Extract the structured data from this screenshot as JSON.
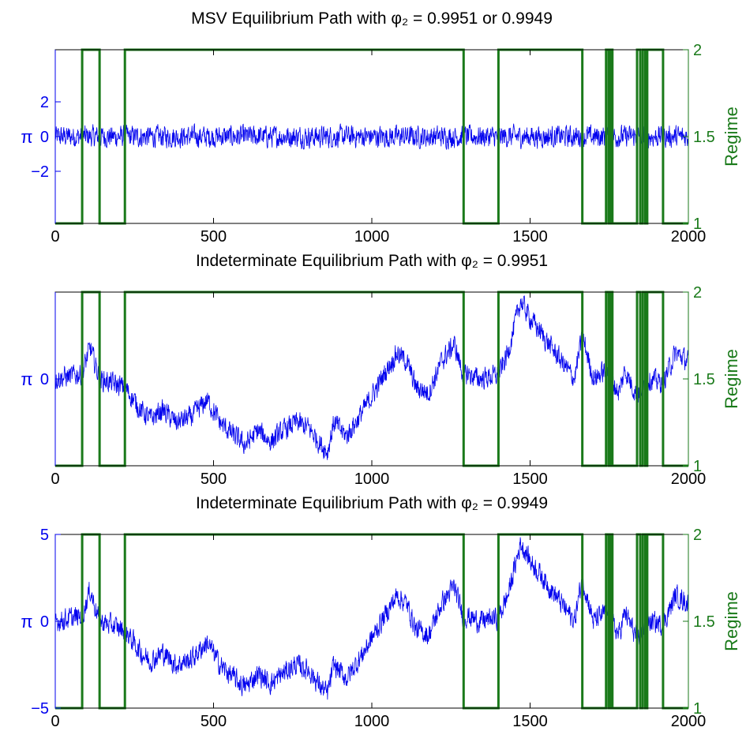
{
  "figure": {
    "colors": {
      "inflation": "#0000ee",
      "regime": "#1a7a1a",
      "axes": "#000000"
    }
  },
  "chart_data": [
    {
      "type": "line",
      "title": "MSV Equilibrium Path with φ₂ = 0.9951 or 0.9949",
      "xlabel": "",
      "ylabel": "π",
      "ylabel_right": "Regime",
      "xlim": [
        0,
        2000
      ],
      "ylim": [
        -5,
        5
      ],
      "ylim_right": [
        1,
        2
      ],
      "xticks": [
        0,
        500,
        1000,
        1500,
        2000
      ],
      "yticks": [
        -2,
        0,
        2
      ],
      "yticks_right": [
        1,
        1.5,
        2
      ],
      "xtick_labels": [
        "0",
        "500",
        "1000",
        "1500",
        "2000"
      ],
      "ytick_labels": [
        "−2",
        "0",
        "2"
      ],
      "ytick_labels_right": [
        "1",
        "1.5",
        "2"
      ],
      "series": [
        {
          "axis": "left",
          "style": "noise",
          "amplitude": 0.55,
          "x": [
            0,
            2000
          ],
          "y": [
            0,
            0
          ]
        },
        {
          "axis": "right",
          "style": "step",
          "x": [
            0,
            85,
            140,
            220,
            1290,
            1400,
            1665,
            1740,
            1748,
            1755,
            1760,
            1838,
            1848,
            1856,
            1864,
            1870,
            1920,
            2000
          ],
          "y": [
            1,
            2,
            1,
            2,
            1,
            2,
            1,
            2,
            1,
            2,
            1,
            2,
            1,
            2,
            1,
            2,
            1,
            2
          ]
        }
      ]
    },
    {
      "type": "line",
      "title": "Indeterminate Equilibrium Path with φ₂ = 0.9951",
      "xlabel": "",
      "ylabel": "π",
      "ylabel_right": "Regime",
      "xlim": [
        0,
        2000
      ],
      "ylim": [
        -5,
        5
      ],
      "ylim_right": [
        1,
        2
      ],
      "xticks": [
        0,
        500,
        1000,
        1500,
        2000
      ],
      "yticks": [
        0
      ],
      "yticks_right": [
        1,
        1.5,
        2
      ],
      "xtick_labels": [
        "0",
        "500",
        "1000",
        "1500",
        "2000"
      ],
      "ytick_labels": [
        "0"
      ],
      "ytick_labels_right": [
        "1",
        "1.5",
        "2"
      ],
      "series": [
        {
          "axis": "left",
          "style": "noise",
          "amplitude": 0.55,
          "x": [
            0,
            85,
            110,
            140,
            220,
            270,
            300,
            340,
            380,
            430,
            480,
            520,
            560,
            600,
            640,
            680,
            720,
            760,
            800,
            840,
            860,
            880,
            920,
            960,
            1000,
            1040,
            1080,
            1110,
            1140,
            1180,
            1220,
            1260,
            1290,
            1300,
            1340,
            1400,
            1430,
            1470,
            1500,
            1560,
            1600,
            1640,
            1665,
            1700,
            1740,
            1780,
            1800,
            1838,
            1870,
            1920,
            1960,
            2000
          ],
          "y": [
            0,
            0.3,
            1.8,
            0,
            -0.5,
            -1.8,
            -2.3,
            -1.8,
            -2.5,
            -2.2,
            -1.2,
            -2.5,
            -3.2,
            -3.8,
            -3.0,
            -3.6,
            -3.0,
            -2.5,
            -2.8,
            -3.8,
            -4.2,
            -2.5,
            -3.3,
            -2.2,
            -1.0,
            0.3,
            1.5,
            1.0,
            -0.5,
            -0.8,
            1.0,
            2.0,
            0.2,
            0.3,
            0,
            0.2,
            1.5,
            4.5,
            3.5,
            2.0,
            1.0,
            0,
            2.5,
            0,
            0.5,
            -0.8,
            0.5,
            -1.0,
            0,
            -0.2,
            1.5,
            1.0
          ]
        },
        {
          "axis": "right",
          "style": "step",
          "x": [
            0,
            85,
            140,
            220,
            1290,
            1400,
            1665,
            1740,
            1748,
            1755,
            1760,
            1838,
            1848,
            1856,
            1864,
            1870,
            1920,
            2000
          ],
          "y": [
            1,
            2,
            1,
            2,
            1,
            2,
            1,
            2,
            1,
            2,
            1,
            2,
            1,
            2,
            1,
            2,
            1,
            2
          ]
        }
      ]
    },
    {
      "type": "line",
      "title": "Indeterminate Equilibrium Path with φ₂ = 0.9949",
      "xlabel": "",
      "ylabel": "π",
      "ylabel_right": "Regime",
      "xlim": [
        0,
        2000
      ],
      "ylim": [
        -5,
        5
      ],
      "ylim_right": [
        1,
        2
      ],
      "xticks": [
        0,
        500,
        1000,
        1500,
        2000
      ],
      "yticks": [
        -5,
        0,
        5
      ],
      "yticks_right": [
        1,
        1.5,
        2
      ],
      "xtick_labels": [
        "0",
        "500",
        "1000",
        "1500",
        "2000"
      ],
      "ytick_labels": [
        "−5",
        "0",
        "5"
      ],
      "ytick_labels_right": [
        "1",
        "1.5",
        "2"
      ],
      "series": [
        {
          "axis": "left",
          "style": "noise",
          "amplitude": 0.55,
          "x": [
            0,
            85,
            110,
            140,
            220,
            270,
            300,
            340,
            380,
            430,
            480,
            520,
            560,
            600,
            640,
            680,
            720,
            760,
            800,
            840,
            860,
            880,
            920,
            960,
            1000,
            1040,
            1080,
            1110,
            1140,
            1180,
            1220,
            1260,
            1290,
            1300,
            1340,
            1400,
            1430,
            1470,
            1500,
            1560,
            1600,
            1640,
            1665,
            1700,
            1740,
            1780,
            1800,
            1838,
            1870,
            1920,
            1960,
            2000
          ],
          "y": [
            0,
            0.3,
            1.8,
            0,
            -0.5,
            -1.8,
            -2.3,
            -1.8,
            -2.5,
            -2.2,
            -1.2,
            -2.5,
            -3.2,
            -3.8,
            -3.0,
            -3.6,
            -3.0,
            -2.5,
            -2.8,
            -3.8,
            -4.2,
            -2.5,
            -3.3,
            -2.2,
            -1.0,
            0.3,
            1.5,
            1.0,
            -0.5,
            -0.8,
            1.0,
            2.0,
            0.2,
            0.3,
            0,
            0.2,
            1.5,
            4.5,
            3.5,
            2.0,
            1.0,
            0,
            2.5,
            0,
            0.5,
            -0.8,
            0.5,
            -1.0,
            0,
            -0.2,
            1.5,
            1.0
          ]
        },
        {
          "axis": "right",
          "style": "step",
          "x": [
            0,
            85,
            140,
            220,
            1290,
            1400,
            1665,
            1740,
            1748,
            1755,
            1760,
            1838,
            1848,
            1856,
            1864,
            1870,
            1920,
            2000
          ],
          "y": [
            1,
            2,
            1,
            2,
            1,
            2,
            1,
            2,
            1,
            2,
            1,
            2,
            1,
            2,
            1,
            2,
            1,
            2
          ]
        }
      ]
    }
  ]
}
